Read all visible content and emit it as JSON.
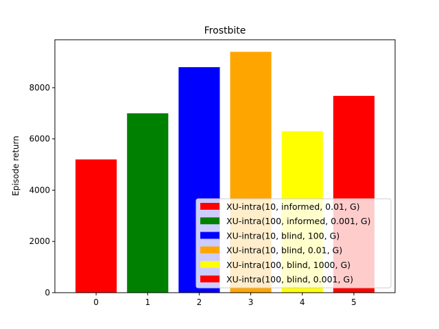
{
  "chart_data": {
    "type": "bar",
    "title": "Frostbite",
    "xlabel": "",
    "ylabel": "Episode return",
    "categories": [
      "0",
      "1",
      "2",
      "3",
      "4",
      "5"
    ],
    "values": [
      5200,
      7000,
      8800,
      9400,
      6300,
      7680
    ],
    "colors": [
      "#ff0000",
      "#008000",
      "#0000ff",
      "#ffa500",
      "#ffff00",
      "#ff0000"
    ],
    "series": [
      {
        "name": "XU-intra(10, informed, 0.01, G)",
        "color": "#ff0000"
      },
      {
        "name": "XU-intra(100, informed, 0.001, G)",
        "color": "#008000"
      },
      {
        "name": "XU-intra(10, blind, 100, G)",
        "color": "#0000ff"
      },
      {
        "name": "XU-intra(10, blind, 0.01, G)",
        "color": "#ffa500"
      },
      {
        "name": "XU-intra(100, blind, 1000, G)",
        "color": "#ffff00"
      },
      {
        "name": "XU-intra(100, blind, 0.001, G)",
        "color": "#ff0000"
      }
    ],
    "yticks": [
      0,
      2000,
      4000,
      6000,
      8000
    ],
    "ylim": [
      0,
      9870
    ],
    "xlim": [
      -0.8,
      5.8
    ],
    "grid": false,
    "legend_position": "lower-right"
  }
}
